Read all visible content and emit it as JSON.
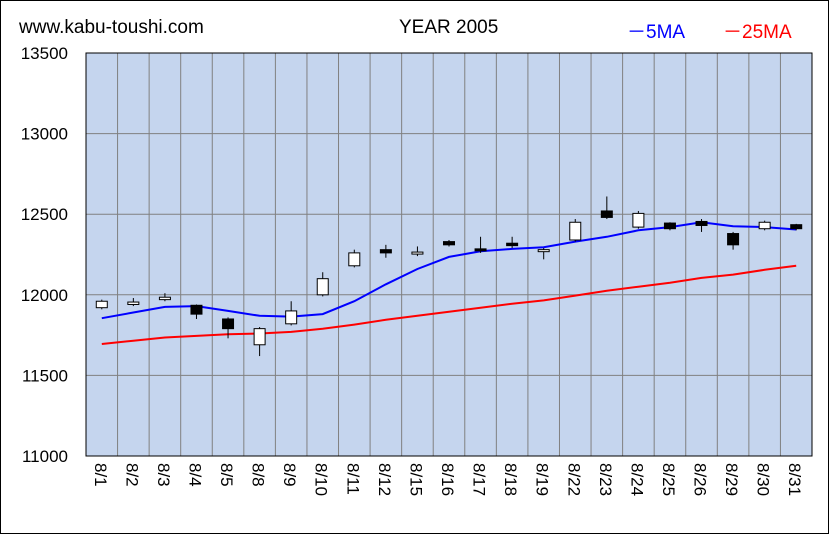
{
  "header": {
    "site": "www.kabu-toushi.com",
    "title": "YEAR 2005",
    "legend": [
      {
        "label": "－5MA",
        "color": "#0000ff"
      },
      {
        "label": "－25MA",
        "color": "#ff0000"
      }
    ]
  },
  "colors": {
    "plot_background": "#c5d5ee",
    "grid": "#808080",
    "candle_up_fill": "#ffffff",
    "candle_down_fill": "#000000",
    "ma5": "#0000ff",
    "ma25": "#ff0000"
  },
  "chart_data": {
    "type": "candlestick",
    "title": "YEAR 2005",
    "ylim": [
      11000,
      13500
    ],
    "yticks": [
      11000,
      11500,
      12000,
      12500,
      13000,
      13500
    ],
    "grid": true,
    "legend_position": "top-right",
    "categories": [
      "8/1",
      "8/2",
      "8/3",
      "8/4",
      "8/5",
      "8/8",
      "8/9",
      "8/10",
      "8/11",
      "8/12",
      "8/15",
      "8/16",
      "8/17",
      "8/18",
      "8/19",
      "8/22",
      "8/23",
      "8/24",
      "8/25",
      "8/26",
      "8/29",
      "8/30",
      "8/31"
    ],
    "ohlc": [
      {
        "open": 11920,
        "high": 11970,
        "low": 11910,
        "close": 11960
      },
      {
        "open": 11940,
        "high": 11980,
        "low": 11930,
        "close": 11955
      },
      {
        "open": 11970,
        "high": 12010,
        "low": 11960,
        "close": 11985
      },
      {
        "open": 11935,
        "high": 11940,
        "low": 11850,
        "close": 11880
      },
      {
        "open": 11850,
        "high": 11860,
        "low": 11730,
        "close": 11790
      },
      {
        "open": 11690,
        "high": 11800,
        "low": 11620,
        "close": 11790
      },
      {
        "open": 11820,
        "high": 11960,
        "low": 11810,
        "close": 11900
      },
      {
        "open": 12000,
        "high": 12140,
        "low": 11990,
        "close": 12100
      },
      {
        "open": 12180,
        "high": 12280,
        "low": 12170,
        "close": 12260
      },
      {
        "open": 12280,
        "high": 12310,
        "low": 12230,
        "close": 12260
      },
      {
        "open": 12255,
        "high": 12300,
        "low": 12240,
        "close": 12265
      },
      {
        "open": 12330,
        "high": 12340,
        "low": 12300,
        "close": 12310
      },
      {
        "open": 12285,
        "high": 12360,
        "low": 12260,
        "close": 12275
      },
      {
        "open": 12320,
        "high": 12360,
        "low": 12290,
        "close": 12305
      },
      {
        "open": 12270,
        "high": 12290,
        "low": 12220,
        "close": 12280
      },
      {
        "open": 12340,
        "high": 12470,
        "low": 12330,
        "close": 12450
      },
      {
        "open": 12520,
        "high": 12610,
        "low": 12470,
        "close": 12480
      },
      {
        "open": 12420,
        "high": 12520,
        "low": 12410,
        "close": 12505
      },
      {
        "open": 12445,
        "high": 12450,
        "low": 12400,
        "close": 12410
      },
      {
        "open": 12455,
        "high": 12470,
        "low": 12390,
        "close": 12430
      },
      {
        "open": 12380,
        "high": 12390,
        "low": 12280,
        "close": 12310
      },
      {
        "open": 12410,
        "high": 12460,
        "low": 12400,
        "close": 12450
      },
      {
        "open": 12435,
        "high": 12440,
        "low": 12400,
        "close": 12410
      }
    ],
    "series": [
      {
        "name": "5MA",
        "values": [
          11855,
          11890,
          11925,
          11930,
          11900,
          11870,
          11865,
          11880,
          11960,
          12065,
          12160,
          12235,
          12270,
          12285,
          12295,
          12330,
          12360,
          12400,
          12420,
          12450,
          12425,
          12420,
          12405
        ]
      },
      {
        "name": "25MA",
        "values": [
          11695,
          11715,
          11735,
          11745,
          11755,
          11760,
          11770,
          11790,
          11815,
          11845,
          11870,
          11895,
          11920,
          11945,
          11965,
          11995,
          12025,
          12050,
          12075,
          12105,
          12125,
          12155,
          12180
        ]
      }
    ]
  }
}
